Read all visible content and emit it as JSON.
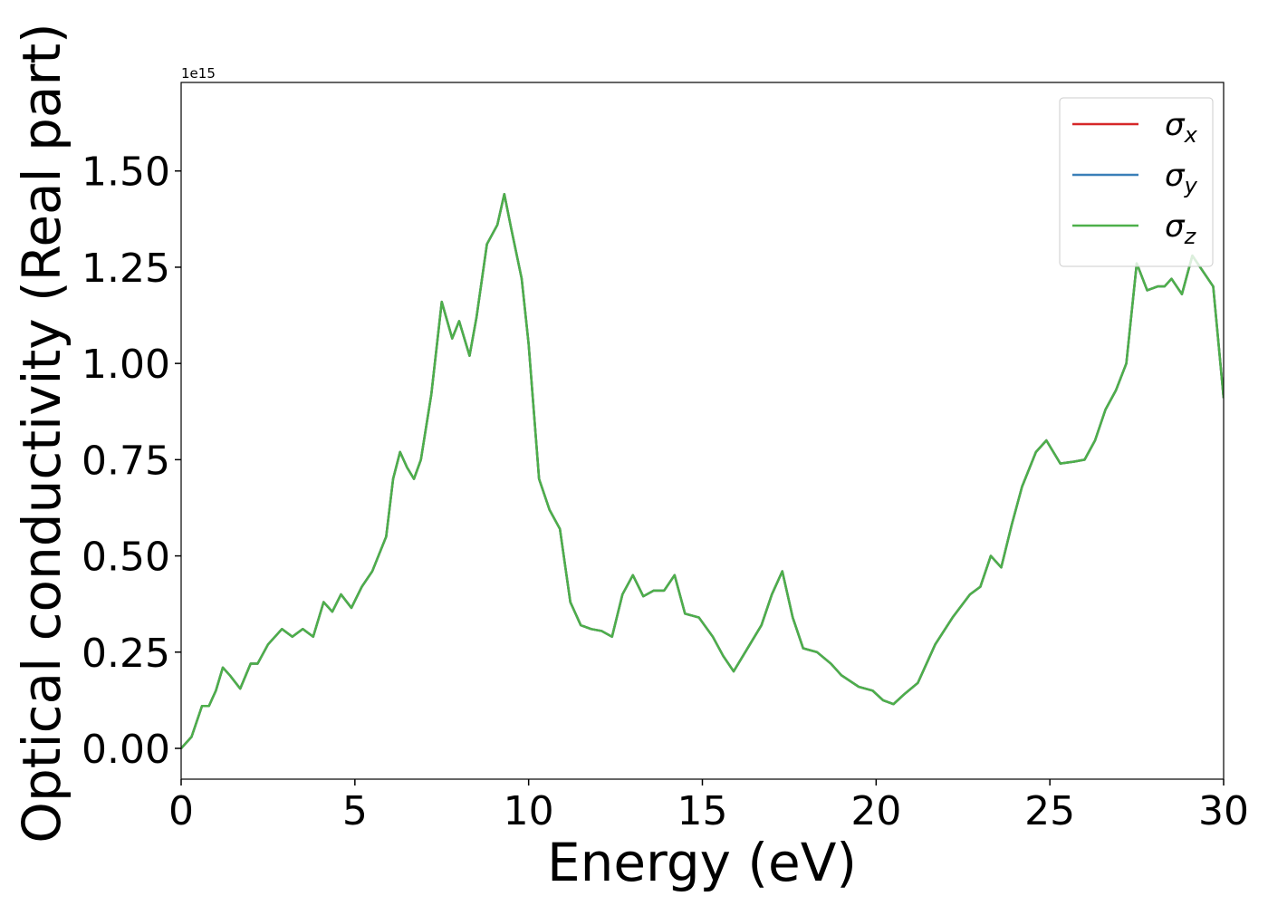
{
  "chart_data": {
    "type": "line",
    "xlabel": "Energy (eV)",
    "ylabel": "Optical conductivity (Real part)",
    "offset_label": "1e15",
    "x": [
      0,
      0.3,
      0.6,
      0.8,
      1.0,
      1.2,
      1.4,
      1.7,
      2.0,
      2.2,
      2.5,
      2.9,
      3.2,
      3.5,
      3.8,
      4.1,
      4.35,
      4.6,
      4.9,
      5.2,
      5.5,
      5.9,
      6.1,
      6.3,
      6.5,
      6.7,
      6.9,
      7.2,
      7.5,
      7.8,
      8.0,
      8.3,
      8.5,
      8.8,
      9.1,
      9.3,
      9.5,
      9.8,
      10.0,
      10.3,
      10.6,
      10.9,
      11.2,
      11.5,
      11.8,
      12.1,
      12.4,
      12.7,
      13.0,
      13.3,
      13.6,
      13.9,
      14.2,
      14.5,
      14.9,
      15.3,
      15.6,
      15.9,
      16.3,
      16.7,
      17.0,
      17.3,
      17.6,
      17.9,
      18.3,
      18.7,
      19.0,
      19.5,
      19.9,
      20.2,
      20.5,
      20.8,
      21.2,
      21.7,
      22.2,
      22.7,
      23.0,
      23.3,
      23.6,
      23.9,
      24.2,
      24.6,
      24.9,
      25.1,
      25.3,
      25.7,
      26.0,
      26.3,
      26.6,
      26.9,
      27.2,
      27.5,
      27.8,
      28.1,
      28.3,
      28.5,
      28.8,
      29.1,
      29.4,
      29.7,
      30.0
    ],
    "series": [
      {
        "name": "σx",
        "color": "#d62728",
        "values": [
          0,
          0.03,
          0.11,
          0.11,
          0.15,
          0.21,
          0.19,
          0.155,
          0.22,
          0.22,
          0.27,
          0.31,
          0.29,
          0.31,
          0.29,
          0.38,
          0.355,
          0.4,
          0.365,
          0.42,
          0.46,
          0.55,
          0.7,
          0.77,
          0.73,
          0.7,
          0.75,
          0.92,
          1.16,
          1.065,
          1.11,
          1.02,
          1.12,
          1.31,
          1.36,
          1.44,
          1.35,
          1.22,
          1.05,
          0.7,
          0.62,
          0.57,
          0.38,
          0.32,
          0.31,
          0.305,
          0.29,
          0.4,
          0.45,
          0.395,
          0.41,
          0.41,
          0.45,
          0.35,
          0.34,
          0.29,
          0.24,
          0.2,
          0.26,
          0.32,
          0.4,
          0.46,
          0.34,
          0.26,
          0.25,
          0.22,
          0.19,
          0.16,
          0.15,
          0.125,
          0.115,
          0.14,
          0.17,
          0.27,
          0.34,
          0.4,
          0.42,
          0.5,
          0.47,
          0.58,
          0.68,
          0.77,
          0.8,
          0.77,
          0.74,
          0.745,
          0.75,
          0.8,
          0.88,
          0.93,
          1.0,
          1.26,
          1.19,
          1.2,
          1.2,
          1.22,
          1.18,
          1.28,
          1.24,
          1.2,
          0.91
        ]
      },
      {
        "name": "σy",
        "color": "#3a7fb8",
        "values": [
          0,
          0.03,
          0.11,
          0.11,
          0.15,
          0.21,
          0.19,
          0.155,
          0.22,
          0.22,
          0.27,
          0.31,
          0.29,
          0.31,
          0.29,
          0.38,
          0.355,
          0.4,
          0.365,
          0.42,
          0.46,
          0.55,
          0.7,
          0.77,
          0.73,
          0.7,
          0.75,
          0.92,
          1.16,
          1.065,
          1.11,
          1.02,
          1.12,
          1.31,
          1.36,
          1.44,
          1.35,
          1.22,
          1.05,
          0.7,
          0.62,
          0.57,
          0.38,
          0.32,
          0.31,
          0.305,
          0.29,
          0.4,
          0.45,
          0.395,
          0.41,
          0.41,
          0.45,
          0.35,
          0.34,
          0.29,
          0.24,
          0.2,
          0.26,
          0.32,
          0.4,
          0.46,
          0.34,
          0.26,
          0.25,
          0.22,
          0.19,
          0.16,
          0.15,
          0.125,
          0.115,
          0.14,
          0.17,
          0.27,
          0.34,
          0.4,
          0.42,
          0.5,
          0.47,
          0.58,
          0.68,
          0.77,
          0.8,
          0.77,
          0.74,
          0.745,
          0.75,
          0.8,
          0.88,
          0.93,
          1.0,
          1.26,
          1.19,
          1.2,
          1.2,
          1.22,
          1.18,
          1.28,
          1.24,
          1.2,
          0.91
        ]
      },
      {
        "name": "σz",
        "color": "#4daf4a",
        "values": [
          0,
          0.03,
          0.11,
          0.11,
          0.15,
          0.21,
          0.19,
          0.155,
          0.22,
          0.22,
          0.27,
          0.31,
          0.29,
          0.31,
          0.29,
          0.38,
          0.355,
          0.4,
          0.365,
          0.42,
          0.46,
          0.55,
          0.7,
          0.77,
          0.73,
          0.7,
          0.75,
          0.92,
          1.16,
          1.065,
          1.11,
          1.02,
          1.12,
          1.31,
          1.36,
          1.44,
          1.35,
          1.22,
          1.05,
          0.7,
          0.62,
          0.57,
          0.38,
          0.32,
          0.31,
          0.305,
          0.29,
          0.4,
          0.45,
          0.395,
          0.41,
          0.41,
          0.45,
          0.35,
          0.34,
          0.29,
          0.24,
          0.2,
          0.26,
          0.32,
          0.4,
          0.46,
          0.34,
          0.26,
          0.25,
          0.22,
          0.19,
          0.16,
          0.15,
          0.125,
          0.115,
          0.14,
          0.17,
          0.27,
          0.34,
          0.4,
          0.42,
          0.5,
          0.47,
          0.58,
          0.68,
          0.77,
          0.8,
          0.77,
          0.74,
          0.745,
          0.75,
          0.8,
          0.88,
          0.93,
          1.0,
          1.26,
          1.19,
          1.2,
          1.2,
          1.22,
          1.18,
          1.28,
          1.24,
          1.2,
          0.91
        ]
      }
    ],
    "xlim": [
      0,
      30
    ],
    "xticks": [
      0,
      5,
      10,
      15,
      20,
      25,
      30
    ],
    "ylim": [
      -0.08,
      1.73
    ],
    "yticks": [
      {
        "value": 0,
        "label": "0.00"
      },
      {
        "value": 0.25,
        "label": "0.25"
      },
      {
        "value": 0.5,
        "label": "0.50"
      },
      {
        "value": 0.75,
        "label": "0.75"
      },
      {
        "value": 1.0,
        "label": "1.00"
      },
      {
        "value": 1.25,
        "label": "1.25"
      },
      {
        "value": 1.5,
        "label": "1.50"
      }
    ],
    "grid": false,
    "legend": "upper right"
  }
}
